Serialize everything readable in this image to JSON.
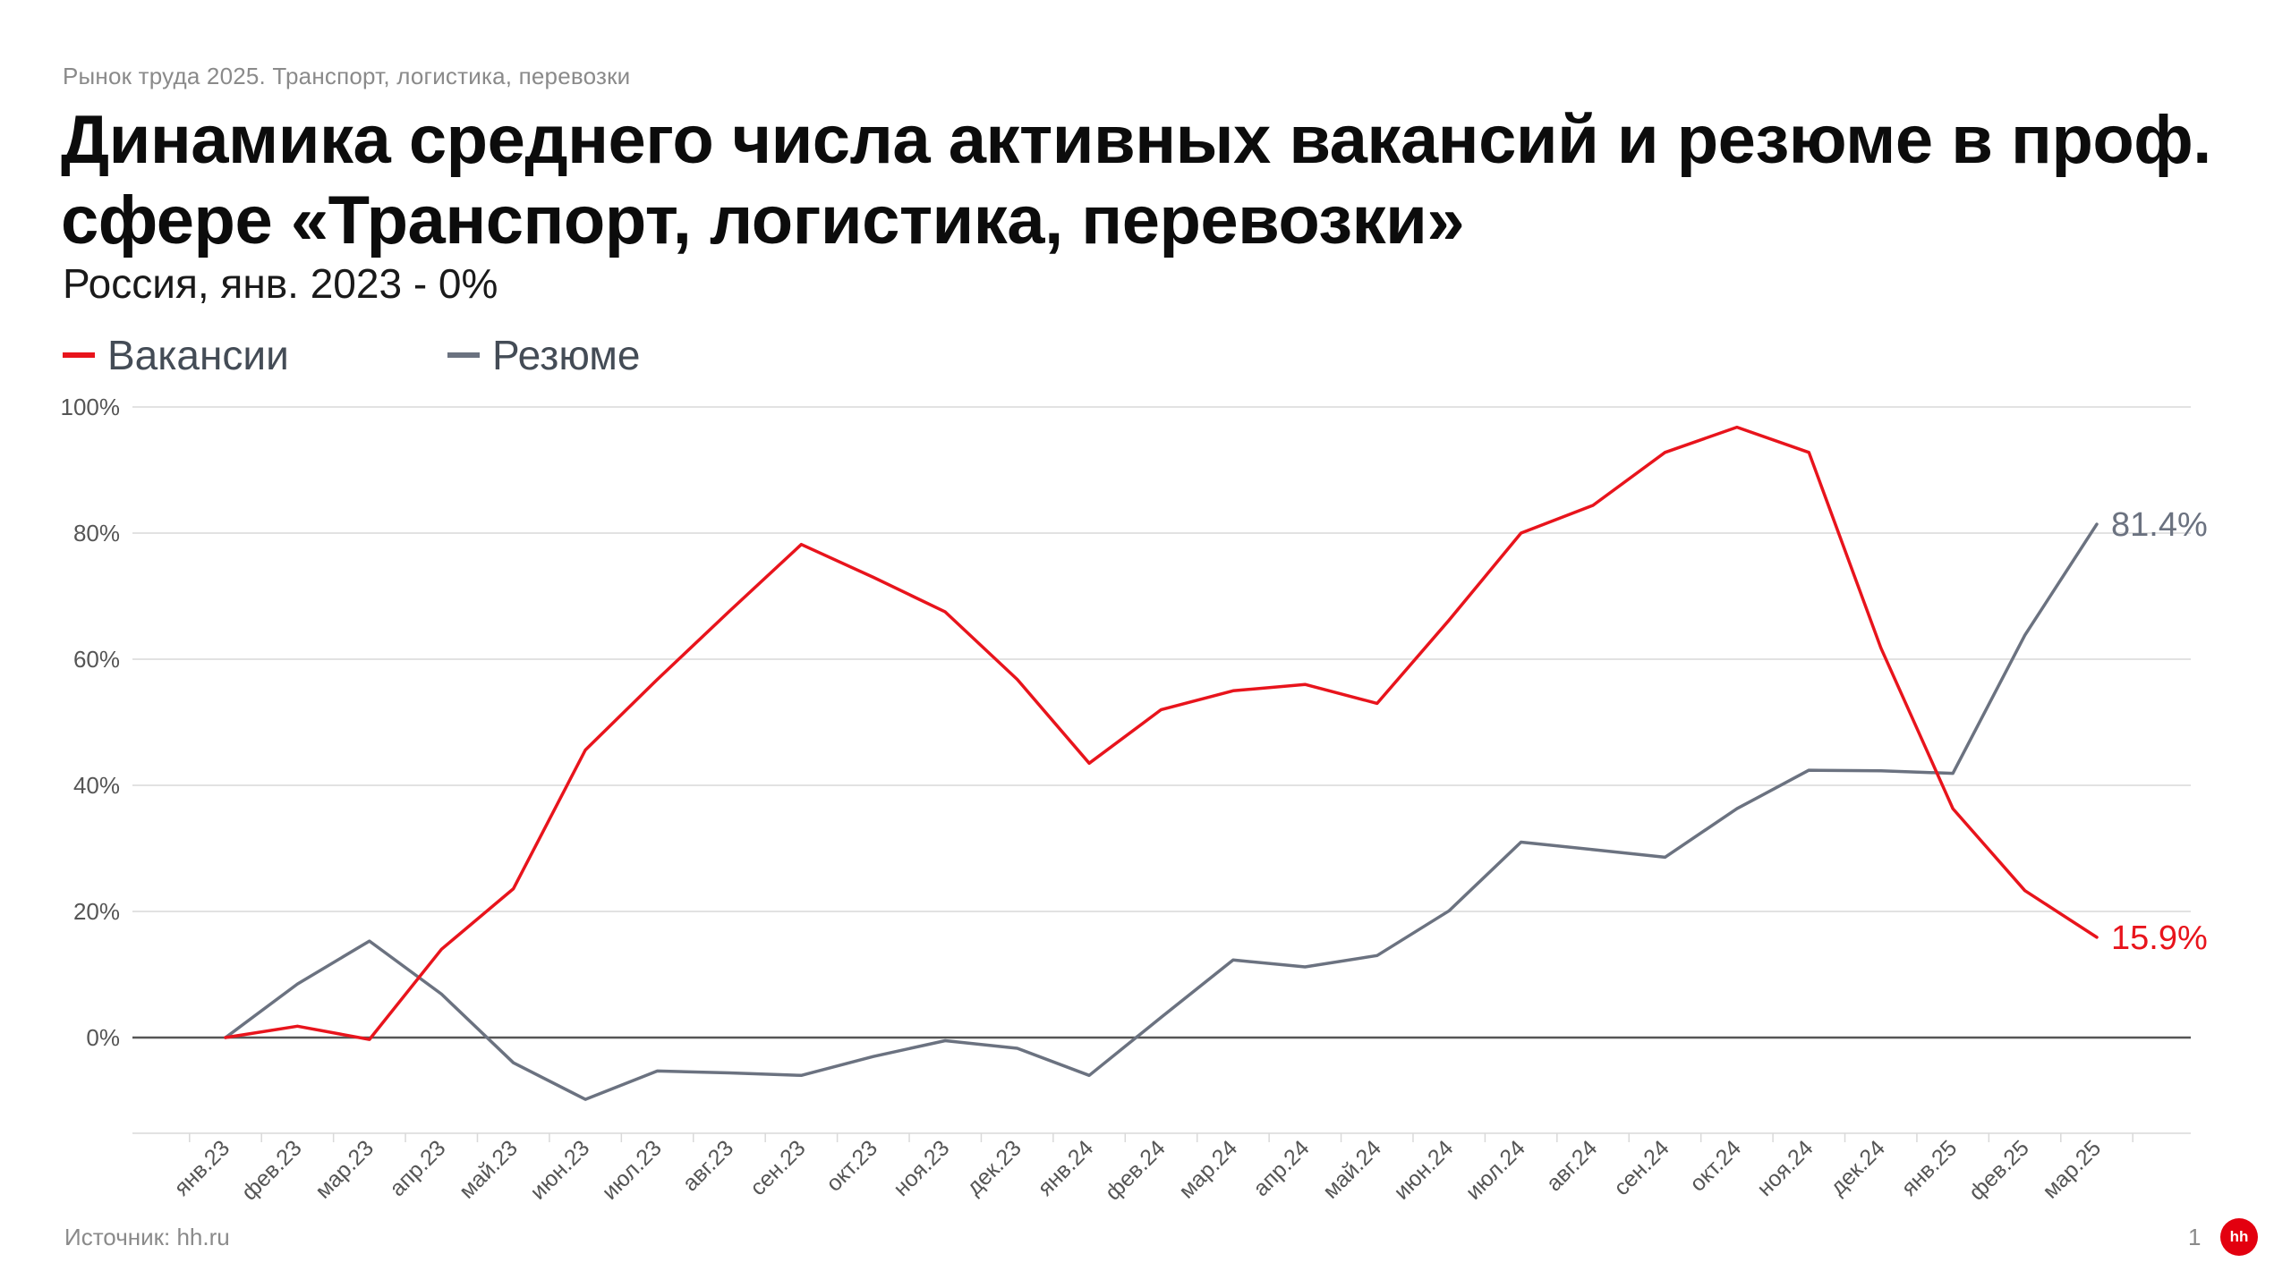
{
  "header": {
    "kicker": "Рынок труда 2025.  Транспорт, логистика, перевозки",
    "title": "Динамика среднего числа активных вакансий и резюме в проф. сфере «Транспорт, логистика, перевозки»",
    "subtitle": "Россия, янв. 2023 - 0%"
  },
  "footer": {
    "source": "Источник: hh.ru",
    "page_number": "1",
    "logo_text": "hh"
  },
  "colors": {
    "vacancies": "#e8141c",
    "resumes": "#6b7280",
    "grid": "#d9d9d9",
    "zero_line": "#555555",
    "tick_text": "#555555",
    "logo": "#e3000f"
  },
  "chart_data": {
    "type": "line",
    "categories": [
      "янв.23",
      "фев.23",
      "мар.23",
      "апр.23",
      "май.23",
      "июн.23",
      "июл.23",
      "авг.23",
      "сен.23",
      "окт.23",
      "ноя.23",
      "дек.23",
      "янв.24",
      "фев.24",
      "мар.24",
      "апр.24",
      "май.24",
      "июн.24",
      "июл.24",
      "авг.24",
      "сен.24",
      "окт.24",
      "ноя.24",
      "дек.24",
      "янв.25",
      "фев.25",
      "мар.25"
    ],
    "series": [
      {
        "name": "Вакансии",
        "color": "#e8141c",
        "values": [
          0,
          1.8,
          -0.3,
          14,
          23.6,
          45.6,
          56.8,
          67.6,
          78.2,
          73,
          67.5,
          56.8,
          43.5,
          52,
          55,
          56,
          53,
          66.2,
          80,
          84.4,
          92.8,
          96.8,
          92.8,
          61.8,
          36.3,
          23.3,
          15.9
        ],
        "end_label": "15.9%"
      },
      {
        "name": "Резюме",
        "color": "#6b7280",
        "values": [
          0,
          8.5,
          15.3,
          6.9,
          -4,
          -9.8,
          -5.3,
          -5.6,
          -6,
          -3,
          -0.5,
          -1.7,
          -6,
          3.2,
          12.3,
          11.2,
          13,
          20.1,
          31,
          29.8,
          28.6,
          36.3,
          42.4,
          42.3,
          41.9,
          63.8,
          81.4
        ],
        "end_label": "81.4%"
      }
    ],
    "ylim": [
      -15,
      100
    ],
    "yticks": [
      0,
      20,
      40,
      60,
      80,
      100
    ],
    "ytick_labels": [
      "0%",
      "20%",
      "40%",
      "60%",
      "80%",
      "100%"
    ],
    "xlabel": "",
    "ylabel": "",
    "grid": true,
    "legend_position": "top-left"
  }
}
